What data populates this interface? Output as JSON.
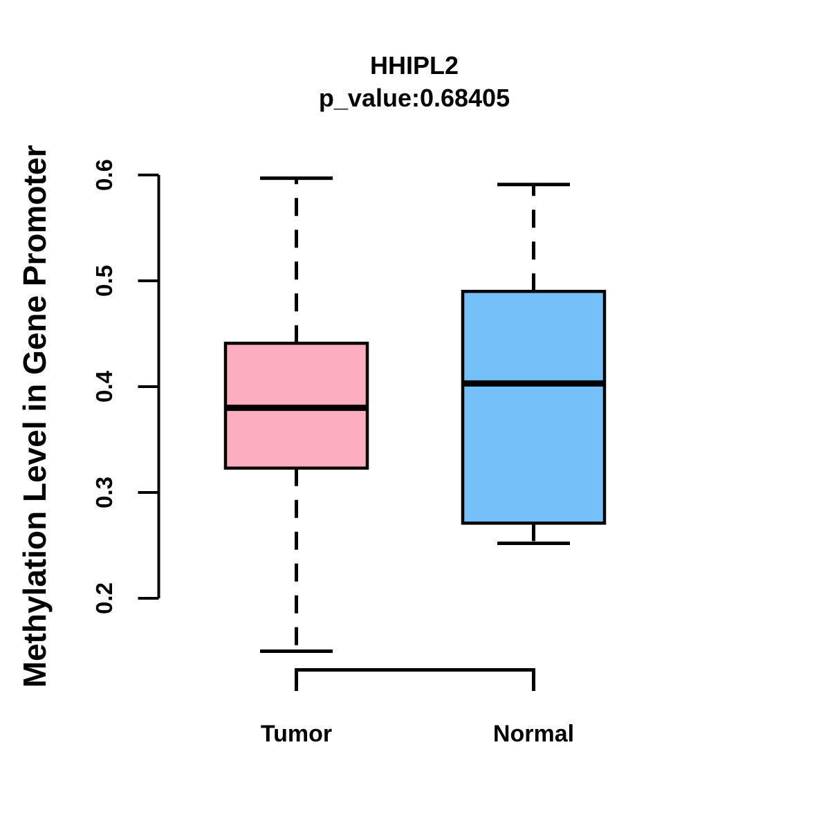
{
  "figure": {
    "background": "#FFFFFF",
    "line_color": "#000000"
  },
  "chart_data": {
    "type": "boxplot",
    "title": "HHIPL2",
    "subtitle": "p_value:0.68405",
    "ylabel": "Methylation Level in Gene Promoter",
    "xlabel": "",
    "categories": [
      "Tumor",
      "Normal"
    ],
    "yticks": [
      0.2,
      0.3,
      0.4,
      0.5,
      0.6
    ],
    "ylim": [
      0.2,
      0.6
    ],
    "grid": false,
    "legend": "none",
    "whisker_style": "dashed",
    "series": [
      {
        "name": "Tumor",
        "color": "#FCAEC1",
        "whisker_low": 0.15,
        "q1": 0.323,
        "median": 0.38,
        "q3": 0.441,
        "whisker_high": 0.597
      },
      {
        "name": "Normal",
        "color": "#74BFF7",
        "whisker_low": 0.252,
        "q1": 0.271,
        "median": 0.403,
        "q3": 0.49,
        "whisker_high": 0.591
      }
    ]
  }
}
